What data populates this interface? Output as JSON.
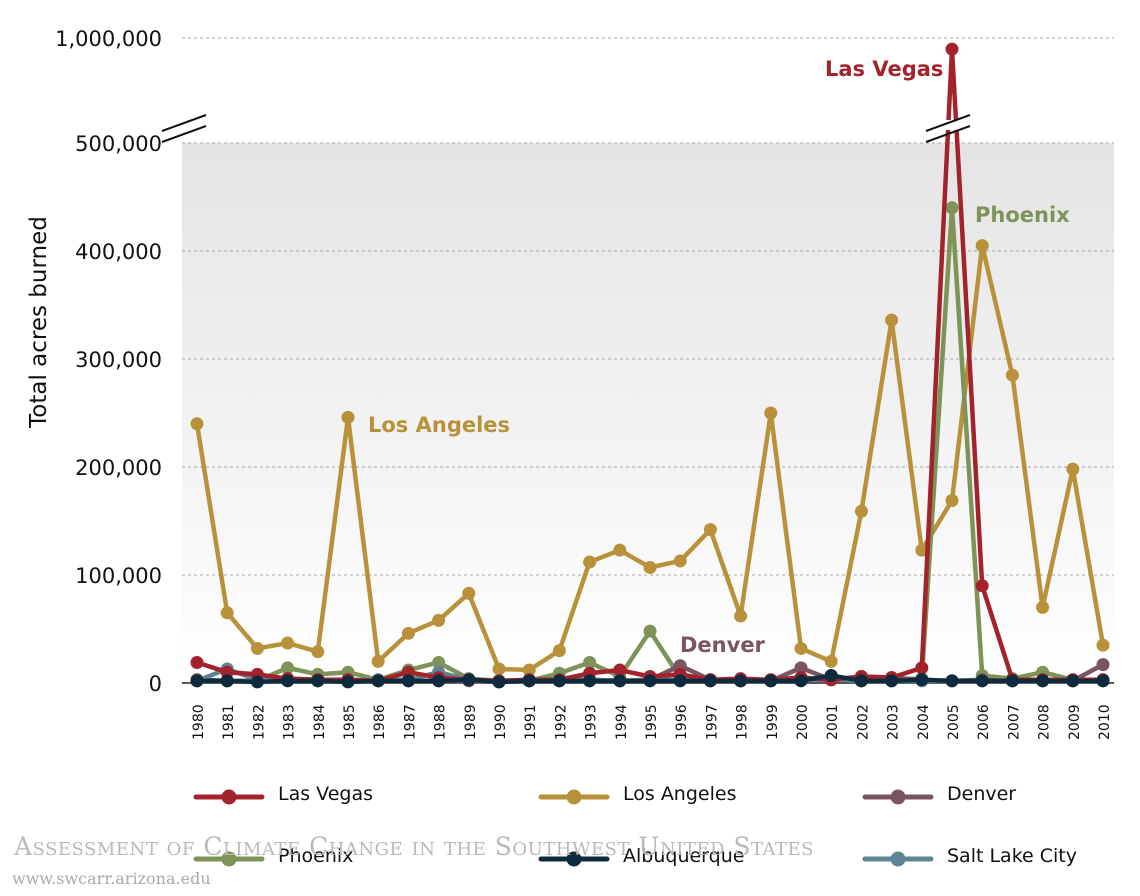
{
  "chart_data": {
    "type": "line",
    "title": "",
    "xlabel": "",
    "ylabel": "Total acres burned",
    "x": [
      "1980",
      "1981",
      "1982",
      "1983",
      "1984",
      "1985",
      "1986",
      "1987",
      "1988",
      "1989",
      "1990",
      "1991",
      "1992",
      "1993",
      "1994",
      "1995",
      "1996",
      "1997",
      "1998",
      "1999",
      "2000",
      "2001",
      "2002",
      "2003",
      "2004",
      "2005",
      "2006",
      "2007",
      "2008",
      "2009",
      "2010"
    ],
    "y_ticks": [
      0,
      100000,
      200000,
      300000,
      400000,
      500000
    ],
    "y_tick_labels": [
      "0",
      "100,000",
      "200,000",
      "300,000",
      "400,000",
      "500,000"
    ],
    "y_break": {
      "from": 500000,
      "to": 1000000,
      "top_label": "1,000,000"
    },
    "ylim": [
      0,
      1000000
    ],
    "grid": "horizontal-dashed",
    "legend_position": "bottom",
    "series": [
      {
        "name": "Los Angeles",
        "color": "#b8913a",
        "values": [
          240000,
          65000,
          32000,
          37000,
          29000,
          246000,
          20000,
          46000,
          58000,
          83000,
          13000,
          12000,
          30000,
          112000,
          123000,
          107000,
          113000,
          142000,
          62000,
          250000,
          32000,
          20000,
          159000,
          336000,
          123000,
          169000,
          405000,
          285000,
          70000,
          198000,
          35000
        ]
      },
      {
        "name": "Phoenix",
        "color": "#7e9358",
        "values": [
          3000,
          2000,
          2000,
          14000,
          8000,
          10000,
          3000,
          12000,
          19000,
          4000,
          2000,
          2000,
          9000,
          19000,
          6000,
          48000,
          5000,
          3000,
          2000,
          3000,
          5000,
          3000,
          2000,
          3000,
          4000,
          440000,
          7000,
          4000,
          10000,
          3000,
          3000
        ]
      },
      {
        "name": "Denver",
        "color": "#7a5460",
        "values": [
          3000,
          2000,
          2000,
          3000,
          2000,
          3000,
          2000,
          2000,
          2000,
          2000,
          1000,
          2000,
          2000,
          3000,
          2000,
          3000,
          16000,
          3000,
          2000,
          2000,
          14000,
          3000,
          6000,
          5000,
          3000,
          2000,
          3000,
          2000,
          2000,
          2000,
          17000
        ]
      },
      {
        "name": "Salt Lake City",
        "color": "#5e8494",
        "values": [
          2000,
          13000,
          3000,
          4000,
          3000,
          2000,
          3000,
          3000,
          10000,
          3000,
          2000,
          3000,
          3000,
          3000,
          2000,
          3000,
          3000,
          2000,
          2000,
          2000,
          3000,
          3000,
          2000,
          2000,
          2000,
          2000,
          2000,
          2000,
          2000,
          2000,
          2000
        ]
      },
      {
        "name": "Las Vegas",
        "color": "#a3232d",
        "values": [
          19000,
          10000,
          8000,
          4000,
          3000,
          3000,
          2000,
          10000,
          5000,
          3000,
          2000,
          3000,
          3000,
          9000,
          12000,
          6000,
          8000,
          3000,
          4000,
          3000,
          5000,
          3000,
          6000,
          5000,
          14000,
          940000,
          90000,
          3000,
          3000,
          3000,
          3000
        ]
      },
      {
        "name": "Albuquerque",
        "color": "#0e2b3d",
        "values": [
          2000,
          2000,
          1000,
          2000,
          2000,
          1000,
          2000,
          2000,
          2000,
          3000,
          1000,
          2000,
          2000,
          2000,
          2000,
          2000,
          2000,
          2000,
          2000,
          2000,
          2000,
          7000,
          2000,
          2000,
          3000,
          2000,
          2000,
          2000,
          2000,
          2000,
          2000
        ]
      }
    ],
    "annotations": [
      {
        "text": "Las Vegas",
        "series": "Las Vegas",
        "color": "#a3232d"
      },
      {
        "text": "Phoenix",
        "series": "Phoenix",
        "color": "#7e9358"
      },
      {
        "text": "Los Angeles",
        "series": "Los Angeles",
        "color": "#b8913a"
      },
      {
        "text": "Denver",
        "series": "Denver",
        "color": "#7a5460"
      }
    ],
    "legend_order": [
      "Las Vegas",
      "Los Angeles",
      "Denver",
      "Phoenix",
      "Albuquerque",
      "Salt Lake City"
    ]
  },
  "watermark": {
    "title": "Assessment of Climate Change in the Southwest United States",
    "url": "www.swcarr.arizona.edu"
  }
}
